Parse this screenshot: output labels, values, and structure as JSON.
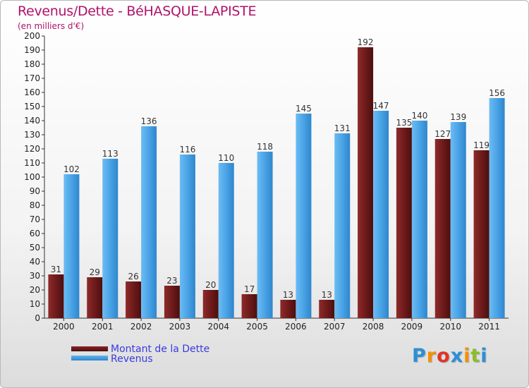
{
  "header": {
    "title": "Revenus/Dette - BéHASQUE-LAPISTE",
    "subtitle": "(en milliers d'€)"
  },
  "legend": {
    "dette_label": "Montant de la Dette",
    "revenus_label": "Revenus"
  },
  "logo": {
    "text": "Proxiti",
    "letters": [
      {
        "ch": "P",
        "color": "#2c8fd6"
      },
      {
        "ch": "r",
        "color": "#f29100"
      },
      {
        "ch": "o",
        "color": "#e2322a"
      },
      {
        "ch": "x",
        "color": "#2c8fd6"
      },
      {
        "ch": "i",
        "color": "#f29100"
      },
      {
        "ch": "t",
        "color": "#8bbd2a"
      },
      {
        "ch": "i",
        "color": "#2c8fd6"
      }
    ]
  },
  "colors": {
    "dette": "#7b1f1f",
    "revenus": "#4aa3e6",
    "title": "#b0136b",
    "legend_text": "#3a3ae0"
  },
  "chart_data": {
    "type": "bar",
    "title": "Revenus/Dette - BéHASQUE-LAPISTE",
    "subtitle": "(en milliers d'€)",
    "xlabel": "",
    "ylabel": "",
    "ylim": [
      0,
      200
    ],
    "ytick_step": 10,
    "grid": false,
    "legend_position": "bottom-left",
    "categories": [
      "2000",
      "2001",
      "2002",
      "2003",
      "2004",
      "2005",
      "2006",
      "2007",
      "2008",
      "2009",
      "2010",
      "2011"
    ],
    "series": [
      {
        "name": "Montant de la Dette",
        "values": [
          31,
          29,
          26,
          23,
          20,
          17,
          13,
          13,
          192,
          135,
          127,
          119
        ]
      },
      {
        "name": "Revenus",
        "values": [
          102,
          113,
          136,
          116,
          110,
          118,
          145,
          131,
          147,
          140,
          139,
          156
        ]
      }
    ]
  }
}
